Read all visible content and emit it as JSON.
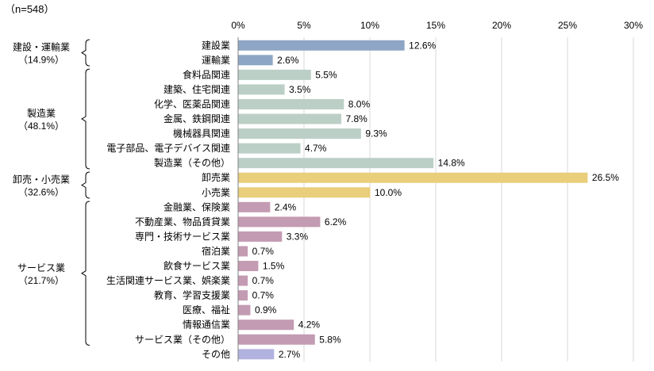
{
  "sample_size": "（n=548）",
  "chart_data": {
    "type": "bar",
    "orientation": "horizontal",
    "xlim": [
      0,
      30
    ],
    "ticks": [
      0,
      5,
      10,
      15,
      20,
      25,
      30
    ],
    "tick_labels": [
      "0%",
      "5%",
      "10%",
      "15%",
      "20%",
      "25%",
      "30%"
    ],
    "grid": true,
    "categories": [
      "建設業",
      "運輸業",
      "食料品関連",
      "建築、住宅関連",
      "化学、医薬品関連",
      "金属、鉄鋼関連",
      "機械器具関連",
      "電子部品、電子デバイス関連",
      "製造業（その他）",
      "卸売業",
      "小売業",
      "金融業、保険業",
      "不動産業、物品賃貸業",
      "専門・技術サービス業",
      "宿泊業",
      "飲食サービス業",
      "生活関連サービス業、娯楽業",
      "教育、学習支援業",
      "医療、福祉",
      "情報通信業",
      "サービス業（その他）",
      "その他"
    ],
    "values": [
      12.6,
      2.6,
      5.5,
      3.5,
      8.0,
      7.8,
      9.3,
      4.7,
      14.8,
      26.5,
      10.0,
      2.4,
      6.2,
      3.3,
      0.7,
      1.5,
      0.7,
      0.7,
      0.9,
      4.2,
      5.8,
      2.7
    ],
    "value_labels": [
      "12.6%",
      "2.6%",
      "5.5%",
      "3.5%",
      "8.0%",
      "7.8%",
      "9.3%",
      "4.7%",
      "14.8%",
      "26.5%",
      "10.0%",
      "2.4%",
      "6.2%",
      "3.3%",
      "0.7%",
      "1.5%",
      "0.7%",
      "0.7%",
      "0.9%",
      "4.2%",
      "5.8%",
      "2.7%"
    ],
    "groups": [
      {
        "name": "建設・運輸業",
        "share": "（14.9%）",
        "start": 0,
        "end": 1,
        "color": "#8ea6c5"
      },
      {
        "name": "製造業",
        "share": "（48.1%）",
        "start": 2,
        "end": 8,
        "color": "#bccfc6"
      },
      {
        "name": "卸売・小売業",
        "share": "（32.6%）",
        "start": 9,
        "end": 10,
        "color": "#e9ce7b"
      },
      {
        "name": "サービス業",
        "share": "（21.7%）",
        "start": 11,
        "end": 20,
        "color": "#c39bb2"
      }
    ],
    "other_color": "#b1b2df"
  }
}
